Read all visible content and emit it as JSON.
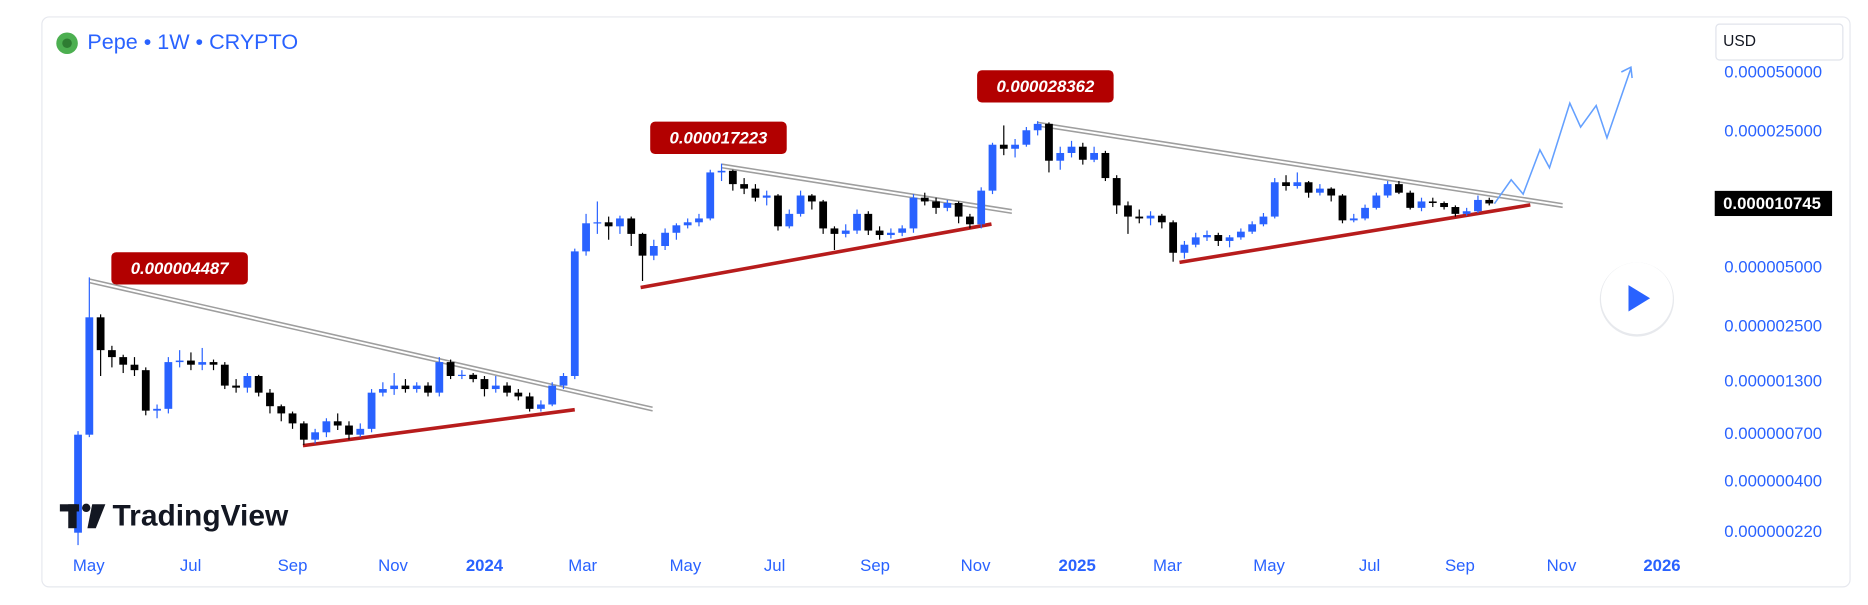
{
  "header": {
    "symbol": "Pepe • 1W • CRYPTO",
    "currency": "USD",
    "brand": "TradingView"
  },
  "chart_data": {
    "type": "candlestick",
    "log_scale": true,
    "up_color": "#2962ff",
    "down_color": "#000000",
    "ylim": [
      1.16e-07,
      9.59e-05
    ],
    "yticks": [
      {
        "value": 5e-05,
        "label": "0.000050000"
      },
      {
        "value": 2.5e-05,
        "label": "0.000025000"
      },
      {
        "value": 5e-06,
        "label": "0.000005000"
      },
      {
        "value": 2.5e-06,
        "label": "0.000002500"
      },
      {
        "value": 1.3e-06,
        "label": "0.000001300"
      },
      {
        "value": 7e-07,
        "label": "0.000000700"
      },
      {
        "value": 4e-07,
        "label": "0.000000400"
      },
      {
        "value": 2.2e-07,
        "label": "0.000000220"
      }
    ],
    "xlim": [
      -3.2,
      143.7
    ],
    "xticks": [
      {
        "value": 0.95,
        "label": "May"
      },
      {
        "value": 9.97,
        "label": "Jul"
      },
      {
        "value": 19,
        "label": "Sep"
      },
      {
        "value": 27.9,
        "label": "Nov"
      },
      {
        "value": 36,
        "label": "2024"
      },
      {
        "value": 44.7,
        "label": "Mar"
      },
      {
        "value": 53.8,
        "label": "May"
      },
      {
        "value": 61.7,
        "label": "Jul"
      },
      {
        "value": 70.6,
        "label": "Sep"
      },
      {
        "value": 79.5,
        "label": "Nov"
      },
      {
        "value": 88.5,
        "label": "2025"
      },
      {
        "value": 96.5,
        "label": "Mar"
      },
      {
        "value": 105.5,
        "label": "May"
      },
      {
        "value": 114.4,
        "label": "Jul"
      },
      {
        "value": 122.4,
        "label": "Sep"
      },
      {
        "value": 131.4,
        "label": "Nov"
      },
      {
        "value": 140.3,
        "label": "2026"
      }
    ],
    "annotations": [
      {
        "value": 4.487e-06,
        "label": "0.000004487"
      },
      {
        "value": 1.7223e-05,
        "label": "0.000017223"
      },
      {
        "value": 2.8362e-05,
        "label": "0.000028362"
      }
    ],
    "last_price": {
      "value": 1.0745e-05,
      "label": "0.000010745"
    },
    "ohlc": [
      [
        2.2e-07,
        7.3e-07,
        1.9e-07,
        7e-07
      ],
      [
        7e-07,
        4.49e-06,
        6.8e-07,
        2.8e-06
      ],
      [
        2.8e-06,
        2.9e-06,
        1.4e-06,
        1.9e-06
      ],
      [
        1.9e-06,
        2e-06,
        1.55e-06,
        1.75e-06
      ],
      [
        1.75e-06,
        1.8e-06,
        1.45e-06,
        1.6e-06
      ],
      [
        1.6e-06,
        1.75e-06,
        1.4e-06,
        1.5e-06
      ],
      [
        1.5e-06,
        1.55e-06,
        8.8e-07,
        9.3e-07
      ],
      [
        9.3e-07,
        1e-06,
        8.5e-07,
        9.5e-07
      ],
      [
        9.5e-07,
        1.75e-06,
        9e-07,
        1.65e-06
      ],
      [
        1.65e-06,
        1.9e-06,
        1.55e-06,
        1.68e-06
      ],
      [
        1.68e-06,
        1.85e-06,
        1.5e-06,
        1.6e-06
      ],
      [
        1.6e-06,
        1.95e-06,
        1.5e-06,
        1.65e-06
      ],
      [
        1.65e-06,
        1.7e-06,
        1.5e-06,
        1.6e-06
      ],
      [
        1.6e-06,
        1.65e-06,
        1.2e-06,
        1.25e-06
      ],
      [
        1.25e-06,
        1.35e-06,
        1.15e-06,
        1.22e-06
      ],
      [
        1.22e-06,
        1.45e-06,
        1.15e-06,
        1.4e-06
      ],
      [
        1.4e-06,
        1.42e-06,
        1.1e-06,
        1.15e-06
      ],
      [
        1.15e-06,
        1.2e-06,
        9e-07,
        9.8e-07
      ],
      [
        9.8e-07,
        1e-06,
        8.2e-07,
        9e-07
      ],
      [
        9e-07,
        9.2e-07,
        7.5e-07,
        8e-07
      ],
      [
        8e-07,
        8.2e-07,
        6.2e-07,
        6.6e-07
      ],
      [
        6.6e-07,
        7.5e-07,
        6.3e-07,
        7.2e-07
      ],
      [
        7.2e-07,
        8.5e-07,
        6.8e-07,
        8.2e-07
      ],
      [
        8.2e-07,
        9e-07,
        7.4e-07,
        7.8e-07
      ],
      [
        7.8e-07,
        8.2e-07,
        6.6e-07,
        7e-07
      ],
      [
        7e-07,
        8e-07,
        6.8e-07,
        7.5e-07
      ],
      [
        7.5e-07,
        1.2e-06,
        7.2e-07,
        1.15e-06
      ],
      [
        1.15e-06,
        1.3e-06,
        1.1e-06,
        1.2e-06
      ],
      [
        1.2e-06,
        1.45e-06,
        1.12e-06,
        1.25e-06
      ],
      [
        1.25e-06,
        1.35e-06,
        1.15e-06,
        1.2e-06
      ],
      [
        1.2e-06,
        1.3e-06,
        1.15e-06,
        1.25e-06
      ],
      [
        1.25e-06,
        1.3e-06,
        1.1e-06,
        1.15e-06
      ],
      [
        1.15e-06,
        1.75e-06,
        1.1e-06,
        1.65e-06
      ],
      [
        1.65e-06,
        1.7e-06,
        1.35e-06,
        1.4e-06
      ],
      [
        1.4e-06,
        1.5e-06,
        1.35e-06,
        1.42e-06
      ],
      [
        1.42e-06,
        1.45e-06,
        1.3e-06,
        1.35e-06
      ],
      [
        1.35e-06,
        1.4e-06,
        1.1e-06,
        1.2e-06
      ],
      [
        1.2e-06,
        1.4e-06,
        1.15e-06,
        1.25e-06
      ],
      [
        1.25e-06,
        1.3e-06,
        1.1e-06,
        1.15e-06
      ],
      [
        1.15e-06,
        1.2e-06,
        1.05e-06,
        1.1e-06
      ],
      [
        1.1e-06,
        1.15e-06,
        9.2e-07,
        9.5e-07
      ],
      [
        9.5e-07,
        1.05e-06,
        9.2e-07,
        1e-06
      ],
      [
        1e-06,
        1.3e-06,
        9.8e-07,
        1.25e-06
      ],
      [
        1.25e-06,
        1.45e-06,
        1.2e-06,
        1.4e-06
      ],
      [
        1.4e-06,
        6.3e-06,
        1.35e-06,
        6.1e-06
      ],
      [
        6.1e-06,
        9.5e-06,
        5.8e-06,
        8.5e-06
      ],
      [
        8.5e-06,
        1.1e-05,
        7.5e-06,
        8.6e-06
      ],
      [
        8.6e-06,
        9.2e-06,
        7e-06,
        8.2e-06
      ],
      [
        8.2e-06,
        9.3e-06,
        7.5e-06,
        9e-06
      ],
      [
        9e-06,
        9.2e-06,
        6.5e-06,
        7.5e-06
      ],
      [
        7.5e-06,
        7.6e-06,
        4.3e-06,
        5.8e-06
      ],
      [
        5.8e-06,
        7e-06,
        5.5e-06,
        6.5e-06
      ],
      [
        6.5e-06,
        8e-06,
        6.2e-06,
        7.6e-06
      ],
      [
        7.6e-06,
        8.5e-06,
        7e-06,
        8.3e-06
      ],
      [
        8.3e-06,
        9e-06,
        8e-06,
        8.6e-06
      ],
      [
        8.6e-06,
        9.5e-06,
        8.2e-06,
        9e-06
      ],
      [
        9e-06,
        1.6e-05,
        8.8e-06,
        1.55e-05
      ],
      [
        1.55e-05,
        1.72e-05,
        1.4e-05,
        1.58e-05
      ],
      [
        1.58e-05,
        1.6e-05,
        1.25e-05,
        1.35e-05
      ],
      [
        1.35e-05,
        1.45e-05,
        1.2e-05,
        1.28e-05
      ],
      [
        1.28e-05,
        1.35e-05,
        1.1e-05,
        1.15e-05
      ],
      [
        1.15e-05,
        1.25e-05,
        1.05e-05,
        1.18e-05
      ],
      [
        1.18e-05,
        1.2e-05,
        7.8e-06,
        8.2e-06
      ],
      [
        8.2e-06,
        1e-05,
        8e-06,
        9.5e-06
      ],
      [
        9.5e-06,
        1.25e-05,
        9.2e-06,
        1.18e-05
      ],
      [
        1.18e-05,
        1.2e-05,
        1e-05,
        1.1e-05
      ],
      [
        1.1e-05,
        1.12e-05,
        7.5e-06,
        8e-06
      ],
      [
        8e-06,
        8.2e-06,
        6.2e-06,
        7.5e-06
      ],
      [
        7.5e-06,
        8.4e-06,
        7.2e-06,
        7.8e-06
      ],
      [
        7.8e-06,
        1e-05,
        7.5e-06,
        9.5e-06
      ],
      [
        9.5e-06,
        9.8e-06,
        7.4e-06,
        7.8e-06
      ],
      [
        7.8e-06,
        8.2e-06,
        7e-06,
        7.4e-06
      ],
      [
        7.4e-06,
        8e-06,
        7.1e-06,
        7.6e-06
      ],
      [
        7.6e-06,
        8.3e-06,
        7.3e-06,
        8e-06
      ],
      [
        8e-06,
        1.2e-05,
        7.6e-06,
        1.15e-05
      ],
      [
        1.15e-05,
        1.22e-05,
        1.05e-05,
        1.1e-05
      ],
      [
        1.1e-05,
        1.15e-05,
        9.5e-06,
        1.02e-05
      ],
      [
        1.02e-05,
        1.12e-05,
        9.8e-06,
        1.08e-05
      ],
      [
        1.08e-05,
        1.1e-05,
        8.5e-06,
        9.2e-06
      ],
      [
        9.2e-06,
        9.5e-06,
        8e-06,
        8.4e-06
      ],
      [
        8.4e-06,
        1.3e-05,
        8e-06,
        1.25e-05
      ],
      [
        1.25e-05,
        2.2e-05,
        1.2e-05,
        2.15e-05
      ],
      [
        2.15e-05,
        2.7e-05,
        1.9e-05,
        2.05e-05
      ],
      [
        2.05e-05,
        2.3e-05,
        1.85e-05,
        2.15e-05
      ],
      [
        2.15e-05,
        2.65e-05,
        2.1e-05,
        2.55e-05
      ],
      [
        2.55e-05,
        2.84e-05,
        2.4e-05,
        2.75e-05
      ],
      [
        2.75e-05,
        2.8e-05,
        1.55e-05,
        1.78e-05
      ],
      [
        1.78e-05,
        2.1e-05,
        1.6e-05,
        1.95e-05
      ],
      [
        1.95e-05,
        2.25e-05,
        1.85e-05,
        2.1e-05
      ],
      [
        2.1e-05,
        2.2e-05,
        1.7e-05,
        1.8e-05
      ],
      [
        1.8e-05,
        2.1e-05,
        1.75e-05,
        1.95e-05
      ],
      [
        1.95e-05,
        2e-05,
        1.4e-05,
        1.45e-05
      ],
      [
        1.45e-05,
        1.5e-05,
        9.5e-06,
        1.05e-05
      ],
      [
        1.05e-05,
        1.1e-05,
        7.5e-06,
        9.2e-06
      ],
      [
        9.2e-06,
        1e-05,
        8.5e-06,
        9e-06
      ],
      [
        9e-06,
        9.8e-06,
        8.3e-06,
        9.3e-06
      ],
      [
        9.3e-06,
        9.5e-06,
        8e-06,
        8.6e-06
      ],
      [
        8.6e-06,
        8.8e-06,
        5.4e-06,
        6e-06
      ],
      [
        6e-06,
        6.9e-06,
        5.6e-06,
        6.6e-06
      ],
      [
        6.6e-06,
        7.6e-06,
        6.4e-06,
        7.2e-06
      ],
      [
        7.2e-06,
        7.8e-06,
        6.9e-06,
        7.4e-06
      ],
      [
        7.4e-06,
        7.6e-06,
        6.5e-06,
        6.9e-06
      ],
      [
        6.9e-06,
        7.4e-06,
        6.4e-06,
        7.2e-06
      ],
      [
        7.2e-06,
        8e-06,
        7e-06,
        7.7e-06
      ],
      [
        7.7e-06,
        8.7e-06,
        7.5e-06,
        8.4e-06
      ],
      [
        8.4e-06,
        9.6e-06,
        8.2e-06,
        9.2e-06
      ],
      [
        9.2e-06,
        1.45e-05,
        9e-06,
        1.38e-05
      ],
      [
        1.38e-05,
        1.5e-05,
        1.25e-05,
        1.32e-05
      ],
      [
        1.32e-05,
        1.55e-05,
        1.28e-05,
        1.38e-05
      ],
      [
        1.38e-05,
        1.4e-05,
        1.15e-05,
        1.22e-05
      ],
      [
        1.22e-05,
        1.35e-05,
        1.18e-05,
        1.28e-05
      ],
      [
        1.28e-05,
        1.3e-05,
        1.1e-05,
        1.18e-05
      ],
      [
        1.18e-05,
        1.2e-05,
        8.5e-06,
        8.8e-06
      ],
      [
        8.8e-06,
        9.5e-06,
        8.6e-06,
        9e-06
      ],
      [
        9e-06,
        1.06e-05,
        8.8e-06,
        1.02e-05
      ],
      [
        1.02e-05,
        1.22e-05,
        1e-05,
        1.18e-05
      ],
      [
        1.18e-05,
        1.4e-05,
        1.15e-05,
        1.35e-05
      ],
      [
        1.35e-05,
        1.4e-05,
        1.2e-05,
        1.22e-05
      ],
      [
        1.22e-05,
        1.25e-05,
        1e-05,
        1.02e-05
      ],
      [
        1.02e-05,
        1.15e-05,
        9.8e-06,
        1.1e-05
      ],
      [
        1.1e-05,
        1.15e-05,
        1.03e-05,
        1.08e-05
      ],
      [
        1.08e-05,
        1.1e-05,
        1e-05,
        1.03e-05
      ],
      [
        1.03e-05,
        1.05e-05,
        9.2e-06,
        9.5e-06
      ],
      [
        9.5e-06,
        1.02e-05,
        9.3e-06,
        9.8e-06
      ],
      [
        9.8e-06,
        1.18e-05,
        9.6e-06,
        1.12e-05
      ],
      [
        1.12e-05,
        1.15e-05,
        1.05e-05,
        1.0745e-05
      ]
    ]
  }
}
